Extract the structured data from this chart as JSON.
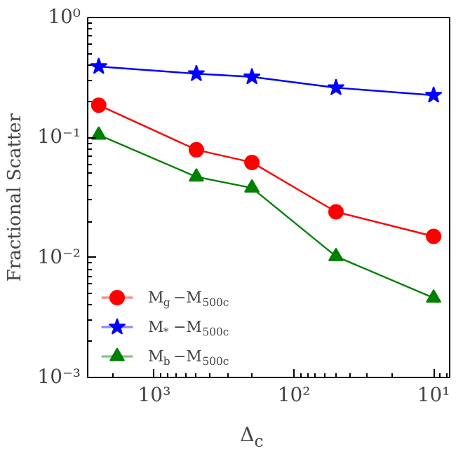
{
  "chart_data": {
    "type": "line",
    "xlabel": "Δ$_{c}$",
    "ylabel": "Fractional Scatter",
    "log": "xy",
    "x": [
      2500,
      500,
      200,
      50,
      10
    ],
    "xlim": [
      3000,
      7.5
    ],
    "ylim": [
      0.001,
      1
    ],
    "xticks": [
      {
        "value": 1000,
        "label": "10³"
      },
      {
        "value": 100,
        "label": "10²"
      },
      {
        "value": 10,
        "label": "10¹"
      }
    ],
    "yticks": [
      {
        "value": 0.001,
        "label": "10⁻³"
      },
      {
        "value": 0.01,
        "label": "10⁻²"
      },
      {
        "value": 0.1,
        "label": "10⁻¹"
      },
      {
        "value": 1,
        "label": "10⁰"
      }
    ],
    "grid": false,
    "legend": "bottom left",
    "series": [
      {
        "name": "M$_{g}$−M$_{500c}$",
        "color": "#ff0000",
        "marker": "circle",
        "values": [
          0.186,
          0.079,
          0.062,
          0.024,
          0.015
        ]
      },
      {
        "name": "M$_{*}$−M$_{500c}$",
        "color": "#0000ff",
        "marker": "star",
        "values": [
          0.39,
          0.34,
          0.32,
          0.26,
          0.225
        ]
      },
      {
        "name": "M$_{b}$−M$_{500c}$",
        "color": "#008000",
        "marker": "triangle",
        "values": [
          0.105,
          0.047,
          0.038,
          0.0102,
          0.0046
        ]
      }
    ]
  }
}
